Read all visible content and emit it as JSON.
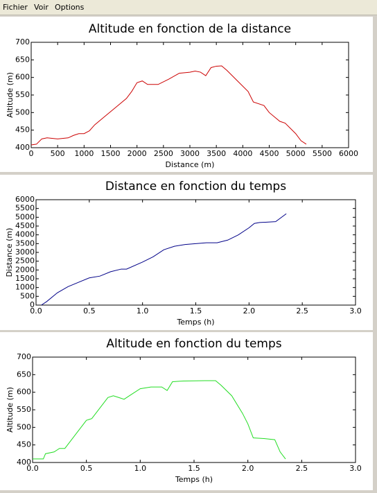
{
  "menu": [
    "Fichier",
    "Voir",
    "Options"
  ],
  "chart_data": [
    {
      "type": "line",
      "title": "Altitude en fonction de la distance",
      "x_label": "Distance (m)",
      "y_label": "Altitude (m)",
      "x": [
        0,
        100,
        200,
        300,
        500,
        700,
        800,
        900,
        1000,
        1100,
        1200,
        1400,
        1600,
        1800,
        1900,
        2000,
        2100,
        2200,
        2400,
        2600,
        2800,
        3000,
        3100,
        3200,
        3300,
        3400,
        3500,
        3600,
        3700,
        3900,
        4100,
        4200,
        4400,
        4500,
        4700,
        4800,
        5000,
        5100,
        5200
      ],
      "values": [
        408,
        410,
        425,
        428,
        425,
        428,
        435,
        440,
        440,
        448,
        465,
        490,
        515,
        540,
        560,
        585,
        590,
        580,
        580,
        595,
        612,
        615,
        618,
        615,
        605,
        628,
        632,
        633,
        620,
        590,
        560,
        530,
        520,
        500,
        475,
        470,
        440,
        420,
        410
      ],
      "color": "#cc0000",
      "xlim": [
        0,
        6000
      ],
      "xticks": [
        0,
        500,
        1000,
        1500,
        2000,
        2500,
        3000,
        3500,
        4000,
        4500,
        5000,
        5500,
        6000
      ],
      "ylim": [
        400,
        700
      ],
      "yticks": [
        400,
        450,
        500,
        550,
        600,
        650,
        700
      ],
      "grid": false
    },
    {
      "type": "line",
      "title": "Distance en fonction du temps",
      "x_label": "Temps (h)",
      "y_label": "Distance (m)",
      "x": [
        0.05,
        0.1,
        0.2,
        0.3,
        0.4,
        0.5,
        0.6,
        0.7,
        0.8,
        0.85,
        1.0,
        1.1,
        1.2,
        1.3,
        1.4,
        1.5,
        1.6,
        1.7,
        1.8,
        1.9,
        2.0,
        2.05,
        2.1,
        2.25,
        2.35
      ],
      "values": [
        0,
        200,
        700,
        1050,
        1300,
        1550,
        1650,
        1900,
        2050,
        2050,
        2450,
        2750,
        3150,
        3350,
        3450,
        3500,
        3550,
        3550,
        3700,
        4000,
        4400,
        4650,
        4700,
        4750,
        5200
      ],
      "color": "#000088",
      "xlim": [
        0,
        3
      ],
      "xticks": [
        {
          "value": 0,
          "label": "0.0"
        },
        0.5,
        {
          "value": 1,
          "label": "1.0"
        },
        1.5,
        {
          "value": 2,
          "label": "2.0"
        },
        2.5,
        {
          "value": 3,
          "label": "3.0"
        }
      ],
      "ylim": [
        0,
        6000
      ],
      "yticks": [
        0,
        500,
        1000,
        1500,
        2000,
        2500,
        3000,
        3500,
        4000,
        4500,
        5000,
        5500,
        6000
      ],
      "grid": false
    },
    {
      "type": "line",
      "title": "Altitude en fonction du temps",
      "x_label": "Temps (h)",
      "y_label": "Altitude (m)",
      "x": [
        0,
        0.1,
        0.12,
        0.2,
        0.25,
        0.3,
        0.4,
        0.5,
        0.55,
        0.6,
        0.7,
        0.75,
        0.8,
        0.85,
        0.9,
        1.0,
        1.1,
        1.2,
        1.25,
        1.3,
        1.4,
        1.6,
        1.7,
        1.75,
        1.85,
        1.95,
        2.0,
        2.05,
        2.15,
        2.25,
        2.3,
        2.35
      ],
      "values": [
        410,
        410,
        425,
        430,
        440,
        440,
        480,
        520,
        525,
        545,
        585,
        590,
        585,
        580,
        590,
        610,
        615,
        615,
        605,
        630,
        632,
        633,
        633,
        620,
        590,
        540,
        510,
        470,
        468,
        465,
        430,
        410
      ],
      "color": "#22dd22",
      "xlim": [
        0,
        3
      ],
      "xticks": [
        {
          "value": 0,
          "label": "0.0"
        },
        0.5,
        {
          "value": 1,
          "label": "1.0"
        },
        1.5,
        {
          "value": 2,
          "label": "2.0"
        },
        2.5,
        {
          "value": 3,
          "label": "3.0"
        }
      ],
      "ylim": [
        400,
        700
      ],
      "yticks": [
        400,
        450,
        500,
        550,
        600,
        650,
        700
      ],
      "grid": false
    }
  ]
}
